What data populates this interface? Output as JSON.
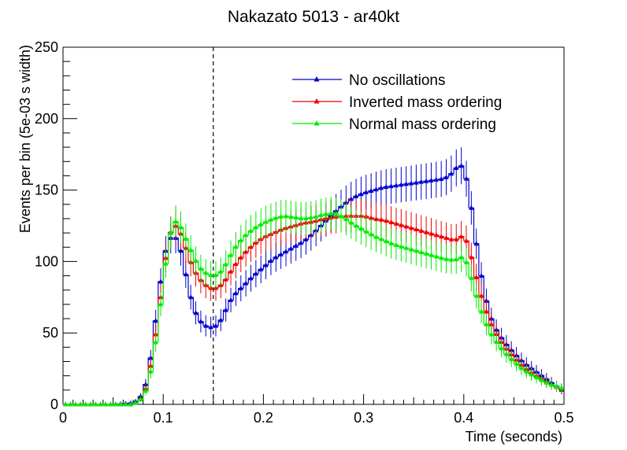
{
  "chart_data": {
    "type": "line",
    "title": "Nakazato 5013 - ar40kt",
    "xlabel": "Time (seconds)",
    "ylabel": "Events per bin (5e-03 s width)",
    "xlim": [
      0,
      0.5
    ],
    "ylim": [
      0,
      250
    ],
    "x_ticks": [
      0,
      0.1,
      0.2,
      0.3,
      0.4,
      0.5
    ],
    "y_ticks": [
      0,
      50,
      100,
      150,
      200,
      250
    ],
    "x_tick_labels": [
      "0",
      "0.1",
      "0.2",
      "0.3",
      "0.4",
      "0.5"
    ],
    "y_tick_labels": [
      "0",
      "50",
      "100",
      "150",
      "200",
      "250"
    ],
    "grid": false,
    "legend_position": "top-right",
    "annotations": [
      {
        "type": "vline",
        "x": 0.15,
        "style": "dashed"
      }
    ],
    "series": [
      {
        "name": "No oscillations",
        "color": "#0000cc",
        "points": [
          [
            0,
            0
          ],
          [
            0.05,
            0
          ],
          [
            0.07,
            1
          ],
          [
            0.075,
            3
          ],
          [
            0.08,
            8
          ],
          [
            0.085,
            20
          ],
          [
            0.09,
            45
          ],
          [
            0.095,
            72
          ],
          [
            0.1,
            100
          ],
          [
            0.105,
            115
          ],
          [
            0.11,
            118
          ],
          [
            0.115,
            115
          ],
          [
            0.12,
            100
          ],
          [
            0.125,
            82
          ],
          [
            0.13,
            68
          ],
          [
            0.135,
            60
          ],
          [
            0.14,
            56
          ],
          [
            0.145,
            54
          ],
          [
            0.15,
            54
          ],
          [
            0.155,
            56
          ],
          [
            0.16,
            62
          ],
          [
            0.165,
            70
          ],
          [
            0.17,
            76
          ],
          [
            0.18,
            83
          ],
          [
            0.19,
            90
          ],
          [
            0.2,
            96
          ],
          [
            0.21,
            102
          ],
          [
            0.22,
            106
          ],
          [
            0.23,
            110
          ],
          [
            0.24,
            114
          ],
          [
            0.25,
            120
          ],
          [
            0.26,
            127
          ],
          [
            0.27,
            134
          ],
          [
            0.28,
            140
          ],
          [
            0.29,
            145
          ],
          [
            0.3,
            148
          ],
          [
            0.31,
            150
          ],
          [
            0.32,
            152
          ],
          [
            0.33,
            153
          ],
          [
            0.34,
            154
          ],
          [
            0.35,
            155
          ],
          [
            0.36,
            156
          ],
          [
            0.37,
            157
          ],
          [
            0.38,
            158
          ],
          [
            0.385,
            160
          ],
          [
            0.39,
            163
          ],
          [
            0.395,
            168
          ],
          [
            0.4,
            166
          ],
          [
            0.405,
            150
          ],
          [
            0.41,
            125
          ],
          [
            0.415,
            100
          ],
          [
            0.42,
            80
          ],
          [
            0.425,
            65
          ],
          [
            0.43,
            55
          ],
          [
            0.44,
            44
          ],
          [
            0.45,
            36
          ],
          [
            0.46,
            29
          ],
          [
            0.47,
            24
          ],
          [
            0.48,
            19
          ],
          [
            0.49,
            14
          ],
          [
            0.5,
            9
          ]
        ]
      },
      {
        "name": "Inverted mass ordering",
        "color": "#ee0000",
        "points": [
          [
            0,
            0
          ],
          [
            0.05,
            0
          ],
          [
            0.07,
            0
          ],
          [
            0.075,
            2
          ],
          [
            0.08,
            6
          ],
          [
            0.085,
            16
          ],
          [
            0.09,
            38
          ],
          [
            0.095,
            60
          ],
          [
            0.1,
            90
          ],
          [
            0.105,
            115
          ],
          [
            0.11,
            126
          ],
          [
            0.115,
            124
          ],
          [
            0.12,
            115
          ],
          [
            0.125,
            104
          ],
          [
            0.13,
            95
          ],
          [
            0.135,
            89
          ],
          [
            0.14,
            85
          ],
          [
            0.145,
            82
          ],
          [
            0.15,
            81
          ],
          [
            0.155,
            82
          ],
          [
            0.16,
            85
          ],
          [
            0.165,
            90
          ],
          [
            0.17,
            96
          ],
          [
            0.18,
            105
          ],
          [
            0.19,
            112
          ],
          [
            0.2,
            117
          ],
          [
            0.21,
            120
          ],
          [
            0.22,
            123
          ],
          [
            0.23,
            125
          ],
          [
            0.24,
            127
          ],
          [
            0.25,
            128
          ],
          [
            0.26,
            130
          ],
          [
            0.27,
            131
          ],
          [
            0.28,
            132
          ],
          [
            0.29,
            132
          ],
          [
            0.3,
            132
          ],
          [
            0.31,
            130
          ],
          [
            0.32,
            129
          ],
          [
            0.33,
            127
          ],
          [
            0.34,
            125
          ],
          [
            0.35,
            123
          ],
          [
            0.36,
            121
          ],
          [
            0.37,
            119
          ],
          [
            0.38,
            117
          ],
          [
            0.39,
            115
          ],
          [
            0.395,
            116
          ],
          [
            0.4,
            119
          ],
          [
            0.405,
            110
          ],
          [
            0.41,
            96
          ],
          [
            0.415,
            82
          ],
          [
            0.42,
            70
          ],
          [
            0.425,
            60
          ],
          [
            0.43,
            52
          ],
          [
            0.44,
            41
          ],
          [
            0.45,
            33
          ],
          [
            0.46,
            26
          ],
          [
            0.47,
            21
          ],
          [
            0.48,
            17
          ],
          [
            0.49,
            13
          ],
          [
            0.5,
            10
          ]
        ]
      },
      {
        "name": "Normal mass ordering",
        "color": "#00ee00",
        "points": [
          [
            0,
            0
          ],
          [
            0.05,
            0
          ],
          [
            0.07,
            0
          ],
          [
            0.075,
            2
          ],
          [
            0.08,
            5
          ],
          [
            0.085,
            14
          ],
          [
            0.09,
            32
          ],
          [
            0.095,
            55
          ],
          [
            0.1,
            85
          ],
          [
            0.105,
            112
          ],
          [
            0.11,
            128
          ],
          [
            0.115,
            128
          ],
          [
            0.12,
            120
          ],
          [
            0.125,
            112
          ],
          [
            0.13,
            104
          ],
          [
            0.135,
            97
          ],
          [
            0.14,
            93
          ],
          [
            0.145,
            91
          ],
          [
            0.15,
            90
          ],
          [
            0.155,
            91
          ],
          [
            0.16,
            95
          ],
          [
            0.165,
            101
          ],
          [
            0.17,
            108
          ],
          [
            0.18,
            117
          ],
          [
            0.19,
            123
          ],
          [
            0.2,
            127
          ],
          [
            0.21,
            130
          ],
          [
            0.22,
            132
          ],
          [
            0.23,
            131
          ],
          [
            0.24,
            130
          ],
          [
            0.25,
            131
          ],
          [
            0.26,
            133
          ],
          [
            0.27,
            134
          ],
          [
            0.28,
            131
          ],
          [
            0.29,
            126
          ],
          [
            0.3,
            122
          ],
          [
            0.31,
            118
          ],
          [
            0.32,
            115
          ],
          [
            0.33,
            112
          ],
          [
            0.34,
            110
          ],
          [
            0.35,
            108
          ],
          [
            0.36,
            106
          ],
          [
            0.37,
            104
          ],
          [
            0.38,
            102
          ],
          [
            0.39,
            101
          ],
          [
            0.395,
            102
          ],
          [
            0.4,
            104
          ],
          [
            0.405,
            95
          ],
          [
            0.41,
            82
          ],
          [
            0.415,
            70
          ],
          [
            0.42,
            60
          ],
          [
            0.425,
            52
          ],
          [
            0.43,
            46
          ],
          [
            0.44,
            37
          ],
          [
            0.45,
            30
          ],
          [
            0.46,
            24
          ],
          [
            0.47,
            20
          ],
          [
            0.48,
            16
          ],
          [
            0.49,
            13
          ],
          [
            0.5,
            11
          ]
        ]
      }
    ]
  }
}
